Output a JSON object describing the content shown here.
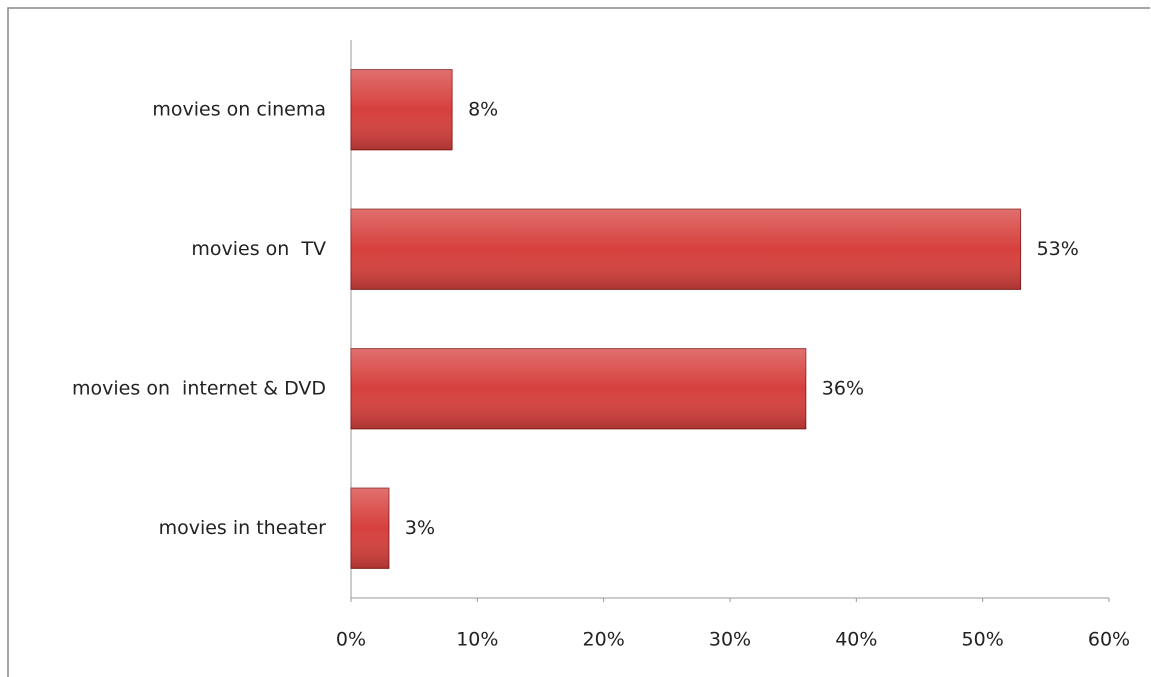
{
  "chart_data": {
    "type": "bar",
    "orientation": "horizontal",
    "categories": [
      "movies on cinema",
      "movies on  TV",
      "movies on  internet & DVD",
      "movies in theater"
    ],
    "values": [
      8,
      53,
      36,
      3
    ],
    "value_labels": [
      "8%",
      "53%",
      "36%",
      "3%"
    ],
    "color": "#d6403d",
    "xlim": [
      0,
      60
    ],
    "xticks": [
      {
        "value": 0,
        "label": "0%"
      },
      {
        "value": 10,
        "label": "10%"
      },
      {
        "value": 20,
        "label": "20%"
      },
      {
        "value": 30,
        "label": "30%"
      },
      {
        "value": 40,
        "label": "40%"
      },
      {
        "value": 50,
        "label": "50%"
      },
      {
        "value": 60,
        "label": "60%"
      }
    ],
    "grid": false
  }
}
